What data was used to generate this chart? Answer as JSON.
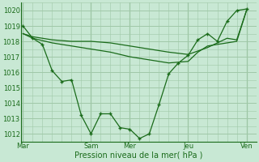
{
  "xlabel": "Pression niveau de la mer( hPa )",
  "bg_color": "#c8e8d4",
  "grid_color": "#a0c8a8",
  "line_color": "#1a6b1a",
  "ylim": [
    1011.5,
    1020.5
  ],
  "yticks": [
    1012,
    1013,
    1014,
    1015,
    1016,
    1017,
    1018,
    1019,
    1020
  ],
  "xlim": [
    -0.1,
    12.0
  ],
  "day_labels": [
    "Mar",
    "Sam",
    "Mer",
    "Jeu",
    "Ven"
  ],
  "day_positions": [
    0.0,
    3.5,
    5.5,
    8.5,
    11.5
  ],
  "vline_positions": [
    0.0,
    3.5,
    5.5,
    8.5,
    11.5
  ],
  "series1_x": [
    0,
    0.5,
    1.0,
    1.5,
    2.0,
    2.5,
    3.0,
    3.5,
    4.0,
    4.5,
    5.0,
    5.5,
    6.0,
    6.5,
    7.0,
    7.5,
    8.0,
    8.5,
    9.0,
    9.5,
    10.0,
    10.5,
    11.0,
    11.5
  ],
  "series1_y": [
    1019.0,
    1018.2,
    1017.8,
    1016.1,
    1015.4,
    1015.5,
    1013.2,
    1012.0,
    1013.3,
    1013.3,
    1012.4,
    1012.3,
    1011.7,
    1012.0,
    1013.9,
    1015.9,
    1016.6,
    1017.1,
    1018.1,
    1018.5,
    1018.0,
    1019.3,
    1020.0,
    1020.1
  ],
  "series2_x": [
    0,
    0.5,
    1.5,
    2.5,
    3.5,
    4.5,
    5.5,
    6.5,
    7.5,
    8.5,
    9.5,
    10.5,
    11.0,
    11.5
  ],
  "series2_y": [
    1018.5,
    1018.3,
    1018.1,
    1018.0,
    1018.0,
    1017.9,
    1017.7,
    1017.5,
    1017.3,
    1017.15,
    1017.6,
    1018.2,
    1018.1,
    1020.0
  ],
  "series3_x": [
    0,
    0.5,
    1.5,
    2.5,
    3.5,
    4.5,
    5.5,
    6.5,
    7.5,
    8.5,
    9.0,
    9.5,
    11.0,
    11.5
  ],
  "series3_y": [
    1018.5,
    1018.2,
    1017.9,
    1017.7,
    1017.5,
    1017.3,
    1017.0,
    1016.8,
    1016.6,
    1016.7,
    1017.3,
    1017.7,
    1018.0,
    1020.0
  ]
}
